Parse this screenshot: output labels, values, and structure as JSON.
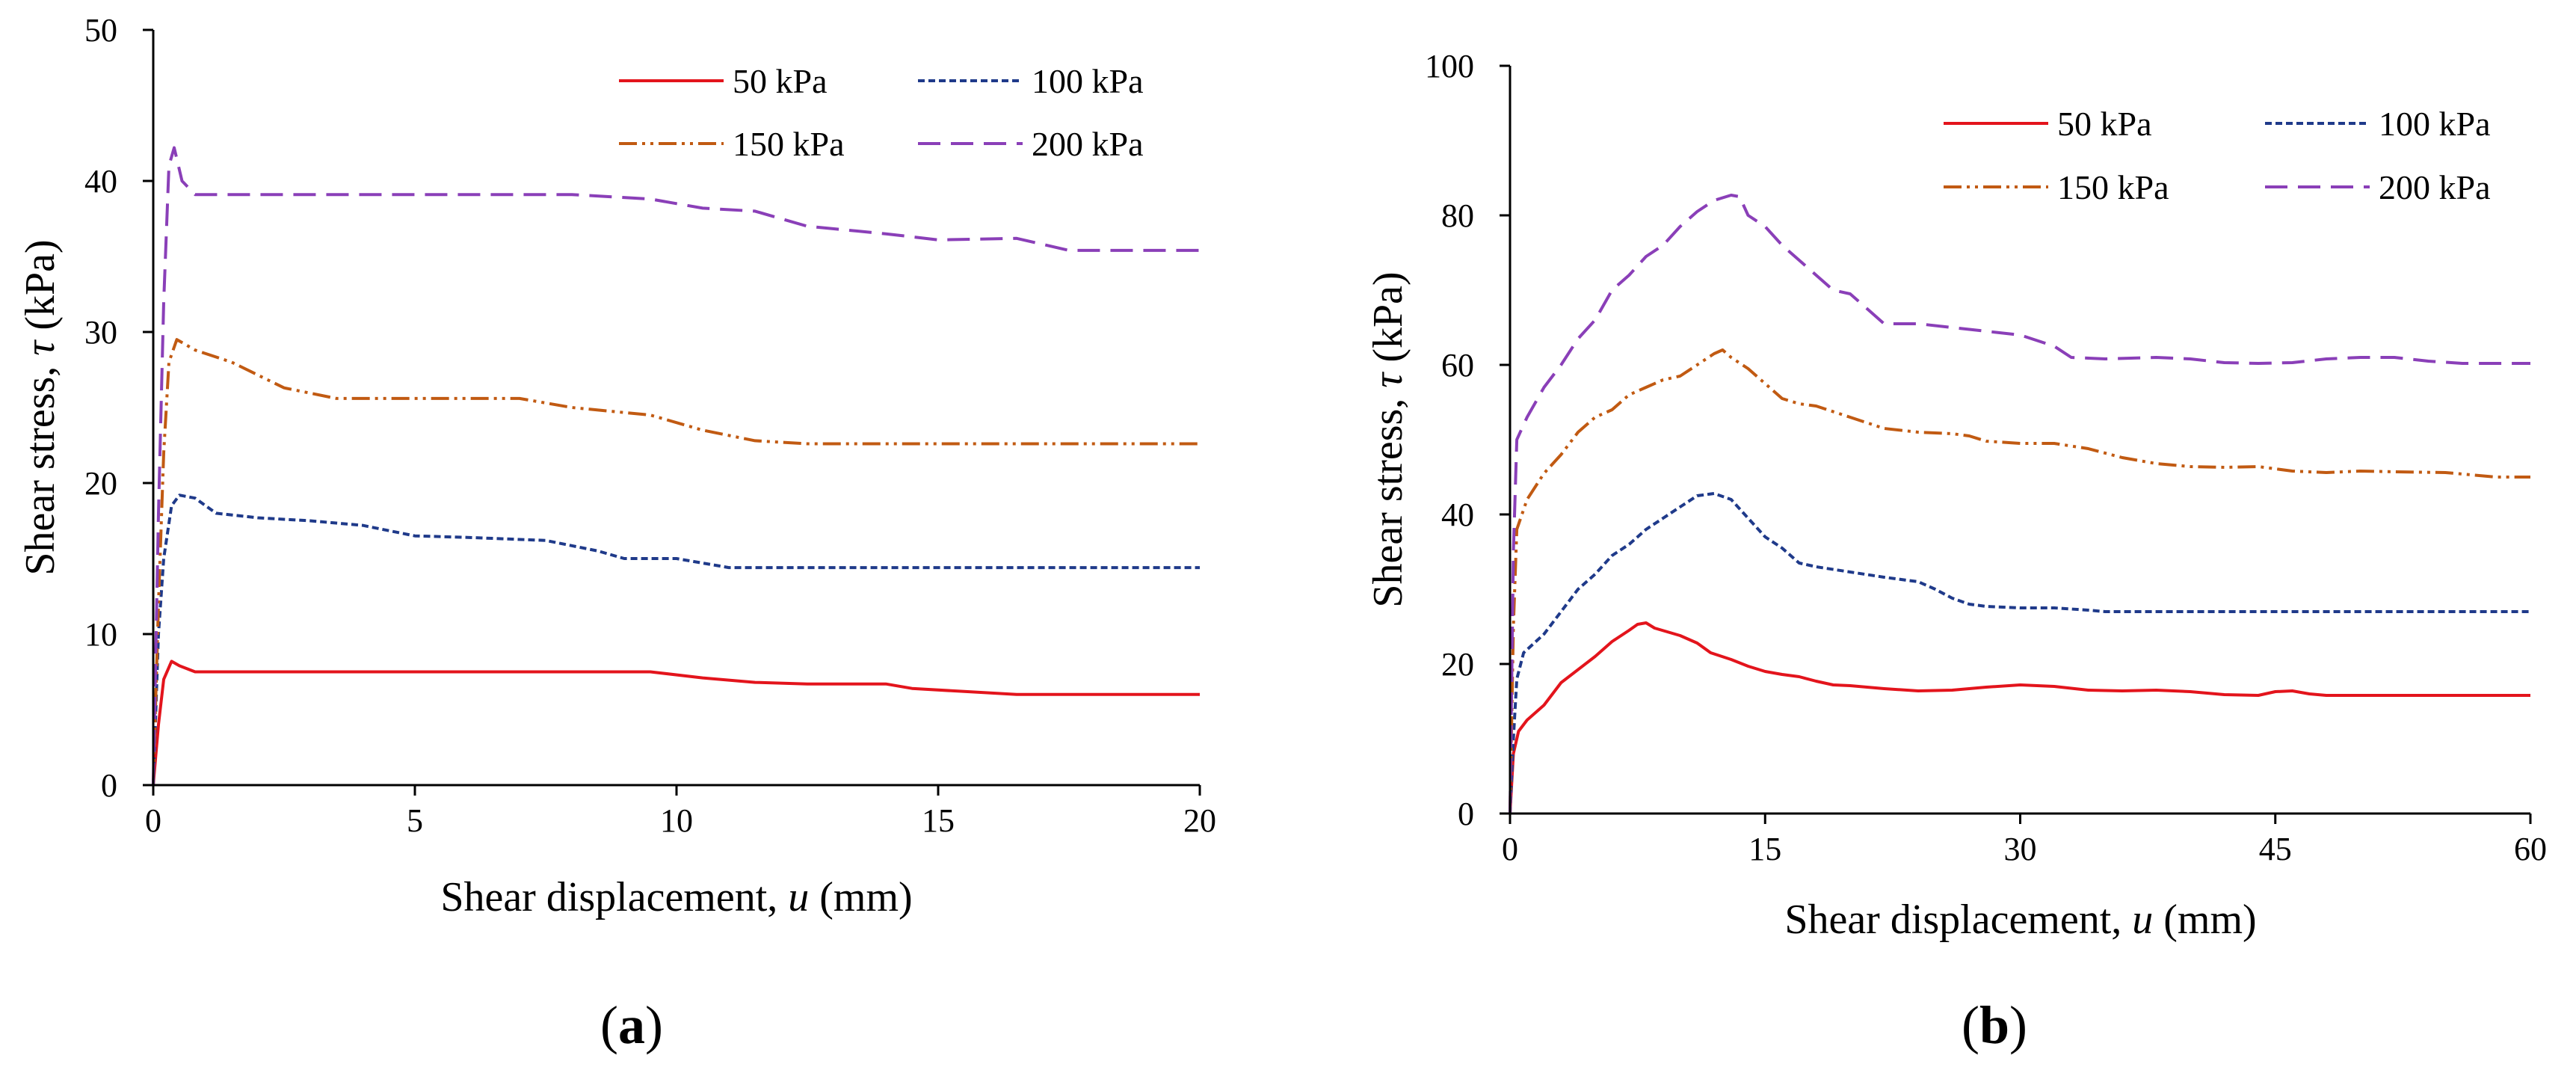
{
  "colors": {
    "s50": "#e3141c",
    "s100": "#1f3a8a",
    "s150": "#c15a12",
    "s200": "#8a3fb8"
  },
  "chart_data": [
    {
      "type": "line",
      "panel_label_prefix": "(",
      "panel_label_letter": "a",
      "panel_label_suffix": ")",
      "xlabel_prefix": "Shear displacement, ",
      "xlabel_var": "u",
      "xlabel_suffix": " (mm)",
      "ylabel_prefix": "Shear stress, ",
      "ylabel_var": "τ",
      "ylabel_suffix": " (kPa)",
      "xlim": [
        0,
        20
      ],
      "ylim": [
        0,
        50
      ],
      "xticks": [
        0,
        5,
        10,
        15,
        20
      ],
      "yticks": [
        0,
        10,
        20,
        30,
        40,
        50
      ],
      "legend_position": "top-right",
      "series": [
        {
          "name": "50 kPa",
          "style": "solid",
          "color": "#e3141c",
          "points": [
            [
              0,
              0
            ],
            [
              0.1,
              4
            ],
            [
              0.2,
              7
            ],
            [
              0.35,
              8.2
            ],
            [
              0.5,
              7.9
            ],
            [
              0.8,
              7.5
            ],
            [
              1.5,
              7.5
            ],
            [
              3,
              7.5
            ],
            [
              6,
              7.5
            ],
            [
              9.5,
              7.5
            ],
            [
              10.5,
              7.1
            ],
            [
              11.5,
              6.8
            ],
            [
              12.5,
              6.7
            ],
            [
              14,
              6.7
            ],
            [
              14.5,
              6.4
            ],
            [
              15.5,
              6.2
            ],
            [
              16.5,
              6.0
            ],
            [
              18,
              6.0
            ],
            [
              20,
              6.0
            ]
          ]
        },
        {
          "name": "100 kPa",
          "style": "dotted",
          "color": "#1f3a8a",
          "points": [
            [
              0,
              0
            ],
            [
              0.1,
              10
            ],
            [
              0.2,
              15
            ],
            [
              0.35,
              18.5
            ],
            [
              0.5,
              19.2
            ],
            [
              0.8,
              19.0
            ],
            [
              1.2,
              18.0
            ],
            [
              2,
              17.7
            ],
            [
              3,
              17.5
            ],
            [
              4,
              17.2
            ],
            [
              5,
              16.5
            ],
            [
              6,
              16.4
            ],
            [
              7.5,
              16.2
            ],
            [
              8.5,
              15.5
            ],
            [
              9,
              15.0
            ],
            [
              10,
              15.0
            ],
            [
              11,
              14.4
            ],
            [
              12,
              14.4
            ],
            [
              15,
              14.4
            ],
            [
              20,
              14.4
            ]
          ]
        },
        {
          "name": "150 kPa",
          "style": "dashdotdot",
          "color": "#c15a12",
          "points": [
            [
              0,
              0
            ],
            [
              0.1,
              12
            ],
            [
              0.2,
              22
            ],
            [
              0.3,
              28
            ],
            [
              0.45,
              29.5
            ],
            [
              0.8,
              28.8
            ],
            [
              1.5,
              28.0
            ],
            [
              2.5,
              26.3
            ],
            [
              3.5,
              25.6
            ],
            [
              5,
              25.6
            ],
            [
              7,
              25.6
            ],
            [
              8,
              25.0
            ],
            [
              9.5,
              24.5
            ],
            [
              10.5,
              23.5
            ],
            [
              11.5,
              22.8
            ],
            [
              12.5,
              22.6
            ],
            [
              15,
              22.6
            ],
            [
              20,
              22.6
            ]
          ]
        },
        {
          "name": "200 kPa",
          "style": "dashed",
          "color": "#8a3fb8",
          "points": [
            [
              0,
              0
            ],
            [
              0.1,
              18
            ],
            [
              0.2,
              32
            ],
            [
              0.3,
              41
            ],
            [
              0.4,
              42.2
            ],
            [
              0.55,
              40
            ],
            [
              0.8,
              39.1
            ],
            [
              1.5,
              39.1
            ],
            [
              4,
              39.1
            ],
            [
              8,
              39.1
            ],
            [
              9.5,
              38.8
            ],
            [
              10.5,
              38.2
            ],
            [
              11.5,
              38.0
            ],
            [
              12.5,
              37.0
            ],
            [
              14,
              36.5
            ],
            [
              15,
              36.1
            ],
            [
              16.5,
              36.2
            ],
            [
              17.5,
              35.4
            ],
            [
              18.5,
              35.4
            ],
            [
              20,
              35.4
            ]
          ]
        }
      ]
    },
    {
      "type": "line",
      "panel_label_prefix": "(",
      "panel_label_letter": "b",
      "panel_label_suffix": ")",
      "xlabel_prefix": "Shear displacement, ",
      "xlabel_var": "u",
      "xlabel_suffix": " (mm)",
      "ylabel_prefix": "Shear stress, ",
      "ylabel_var": "τ",
      "ylabel_suffix": " (kPa)",
      "xlim": [
        0,
        60
      ],
      "ylim": [
        0,
        100
      ],
      "xticks": [
        0,
        15,
        30,
        45,
        60
      ],
      "yticks": [
        0,
        20,
        40,
        60,
        80,
        100
      ],
      "legend_position": "top-right",
      "series": [
        {
          "name": "50 kPa",
          "style": "solid",
          "color": "#e3141c",
          "points": [
            [
              0,
              0
            ],
            [
              0.2,
              8
            ],
            [
              0.5,
              11
            ],
            [
              1,
              12.5
            ],
            [
              2,
              14.5
            ],
            [
              3,
              17.5
            ],
            [
              5,
              21
            ],
            [
              6,
              23
            ],
            [
              7,
              24.5
            ],
            [
              7.5,
              25.3
            ],
            [
              8,
              25.5
            ],
            [
              8.5,
              24.8
            ],
            [
              10,
              23.8
            ],
            [
              11,
              22.8
            ],
            [
              11.8,
              21.5
            ],
            [
              13,
              20.6
            ],
            [
              14,
              19.7
            ],
            [
              15,
              19.0
            ],
            [
              16,
              18.6
            ],
            [
              17,
              18.3
            ],
            [
              18,
              17.7
            ],
            [
              19,
              17.2
            ],
            [
              20,
              17.1
            ],
            [
              22,
              16.7
            ],
            [
              24,
              16.4
            ],
            [
              26,
              16.5
            ],
            [
              28,
              16.9
            ],
            [
              30,
              17.2
            ],
            [
              32,
              17.0
            ],
            [
              34,
              16.5
            ],
            [
              36,
              16.4
            ],
            [
              38,
              16.5
            ],
            [
              40,
              16.3
            ],
            [
              42,
              15.9
            ],
            [
              44,
              15.8
            ],
            [
              45,
              16.3
            ],
            [
              46,
              16.4
            ],
            [
              47,
              16.0
            ],
            [
              48,
              15.8
            ],
            [
              50,
              15.8
            ],
            [
              60,
              15.8
            ]
          ]
        },
        {
          "name": "100 kPa",
          "style": "dotted",
          "color": "#1f3a8a",
          "points": [
            [
              0,
              0
            ],
            [
              0.2,
              10
            ],
            [
              0.4,
              18
            ],
            [
              0.8,
              21.5
            ],
            [
              2,
              24
            ],
            [
              3,
              27
            ],
            [
              4,
              30
            ],
            [
              5,
              32
            ],
            [
              6,
              34.5
            ],
            [
              7,
              36
            ],
            [
              8,
              38
            ],
            [
              9,
              39.5
            ],
            [
              10,
              41
            ],
            [
              11,
              42.5
            ],
            [
              12,
              42.8
            ],
            [
              13,
              42
            ],
            [
              14,
              39.5
            ],
            [
              15,
              37
            ],
            [
              16,
              35.5
            ],
            [
              17,
              33.5
            ],
            [
              18,
              33
            ],
            [
              20,
              32.3
            ],
            [
              22,
              31.6
            ],
            [
              24,
              31
            ],
            [
              25,
              30
            ],
            [
              26,
              28.8
            ],
            [
              27,
              28
            ],
            [
              28,
              27.7
            ],
            [
              30,
              27.5
            ],
            [
              32,
              27.5
            ],
            [
              34,
              27.2
            ],
            [
              35,
              27.0
            ],
            [
              40,
              27.0
            ],
            [
              45,
              27.0
            ],
            [
              60,
              27.0
            ]
          ]
        },
        {
          "name": "150 kPa",
          "style": "dashdotdot",
          "color": "#c15a12",
          "points": [
            [
              0,
              0
            ],
            [
              0.2,
              25
            ],
            [
              0.4,
              38
            ],
            [
              1,
              42
            ],
            [
              2,
              45.5
            ],
            [
              3,
              48
            ],
            [
              4,
              51
            ],
            [
              5,
              53
            ],
            [
              6,
              54
            ],
            [
              7,
              56
            ],
            [
              8,
              57
            ],
            [
              9,
              58
            ],
            [
              10,
              58.5
            ],
            [
              11,
              60
            ],
            [
              12,
              61.5
            ],
            [
              12.5,
              62
            ],
            [
              13,
              61
            ],
            [
              14,
              59.5
            ],
            [
              15,
              57.5
            ],
            [
              16,
              55.5
            ],
            [
              17,
              54.8
            ],
            [
              18,
              54.5
            ],
            [
              20,
              53
            ],
            [
              22,
              51.5
            ],
            [
              24,
              51
            ],
            [
              26,
              50.8
            ],
            [
              27,
              50.5
            ],
            [
              28,
              49.8
            ],
            [
              30,
              49.5
            ],
            [
              32,
              49.5
            ],
            [
              34,
              48.8
            ],
            [
              36,
              47.6
            ],
            [
              38,
              46.8
            ],
            [
              40,
              46.4
            ],
            [
              42,
              46.3
            ],
            [
              44,
              46.4
            ],
            [
              46,
              45.8
            ],
            [
              48,
              45.6
            ],
            [
              50,
              45.8
            ],
            [
              52,
              45.7
            ],
            [
              55,
              45.6
            ],
            [
              58,
              45.0
            ],
            [
              60,
              45.0
            ]
          ]
        },
        {
          "name": "200 kPa",
          "style": "dashed",
          "color": "#8a3fb8",
          "points": [
            [
              0,
              0
            ],
            [
              0.2,
              35
            ],
            [
              0.4,
              50
            ],
            [
              1,
              53
            ],
            [
              2,
              57
            ],
            [
              3,
              60
            ],
            [
              4,
              63.5
            ],
            [
              5,
              66
            ],
            [
              6,
              70
            ],
            [
              7,
              72
            ],
            [
              8,
              74.5
            ],
            [
              9,
              76
            ],
            [
              10,
              78.5
            ],
            [
              11,
              80.5
            ],
            [
              12,
              82
            ],
            [
              13,
              82.7
            ],
            [
              13.5,
              82.5
            ],
            [
              14,
              80
            ],
            [
              15,
              78.5
            ],
            [
              16,
              76
            ],
            [
              17,
              74
            ],
            [
              18,
              72
            ],
            [
              19,
              70
            ],
            [
              20,
              69.5
            ],
            [
              21,
              67.5
            ],
            [
              22,
              65.5
            ],
            [
              24,
              65.5
            ],
            [
              26,
              65
            ],
            [
              28,
              64.5
            ],
            [
              30,
              64
            ],
            [
              32,
              62.5
            ],
            [
              33,
              61
            ],
            [
              35,
              60.8
            ],
            [
              38,
              61
            ],
            [
              40,
              60.8
            ],
            [
              42,
              60.3
            ],
            [
              44,
              60.2
            ],
            [
              46,
              60.3
            ],
            [
              48,
              60.8
            ],
            [
              50,
              61
            ],
            [
              52,
              61
            ],
            [
              54,
              60.5
            ],
            [
              56,
              60.2
            ],
            [
              60,
              60.2
            ]
          ]
        }
      ]
    }
  ]
}
